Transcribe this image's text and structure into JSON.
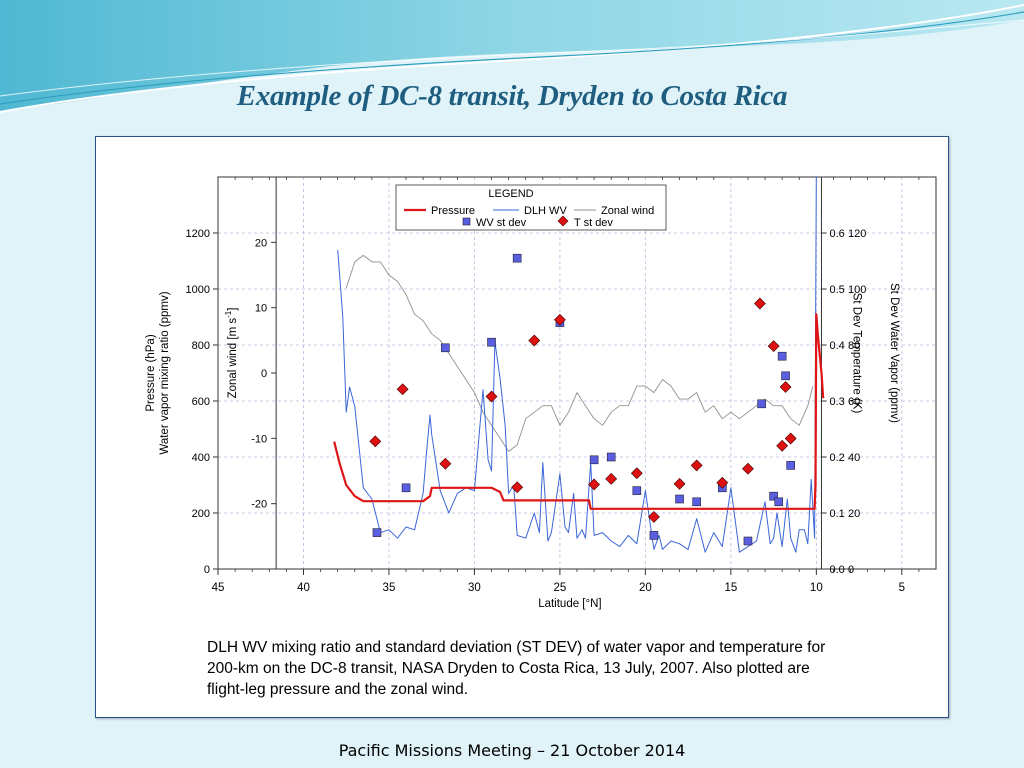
{
  "slide": {
    "title": "Example of DC-8 transit, Dryden to Costa Rica",
    "caption": "DLH WV mixing ratio and standard deviation (ST DEV) of water vapor and temperature for 200-km on the DC-8 transit, NASA Dryden to Costa Rica, 13 July, 2007. Also plotted are flight-leg pressure and the zonal wind.",
    "footer": "Pacific Missions Meeting – 21 October 2014",
    "colors": {
      "title": "#1f5e80",
      "pressure": "#e01515",
      "dlh_wv": "#3a66d8",
      "zonal_wind": "#909090",
      "wv_stdev": "#5a5ee0",
      "t_stdev": "#dd1111"
    }
  },
  "chart_data": {
    "type": "line",
    "xlabel": "Latitude [°N]",
    "xlim": [
      45,
      3
    ],
    "x_ticks": [
      "45",
      "40",
      "35",
      "30",
      "25",
      "20",
      "15",
      "10",
      "5"
    ],
    "grid": true,
    "legend": {
      "title": "LEGEND",
      "placement": "top-center",
      "entries": [
        "Pressure",
        "DLH WV",
        "Zonal wind",
        "WV st dev",
        "T st dev"
      ]
    },
    "axes": {
      "pressure_wv": {
        "label_line1": "Pressure (hPa)",
        "label_line2": "Water vapor mixing ratio (ppmv)",
        "range": [
          0,
          1400
        ],
        "ticks": [
          "0",
          "200",
          "400",
          "600",
          "800",
          "1000",
          "1200"
        ]
      },
      "zonal_wind": {
        "label": "Zonal wind [m s",
        "label_sup": "-1",
        "label_end": "]",
        "range": [
          -30,
          30
        ],
        "ticks": [
          "-20",
          "-10",
          "0",
          "10",
          "20"
        ]
      },
      "t_stdev": {
        "label": "St Dev Temperature (K)",
        "range": [
          0,
          0.7
        ],
        "ticks": [
          "0.0",
          "0.1",
          "0.2",
          "0.3",
          "0.4",
          "0.5",
          "0.6"
        ]
      },
      "wv_stdev": {
        "label": "St Dev Water Vapor (ppmv)",
        "range": [
          0,
          140
        ],
        "ticks": [
          "0",
          "20",
          "40",
          "60",
          "80",
          "100",
          "120"
        ]
      }
    },
    "series": [
      {
        "name": "Pressure",
        "axis": "pressure_wv",
        "x": [
          38.2,
          37.9,
          37.5,
          37.0,
          36.5,
          36.0,
          35.0,
          34.0,
          33.0,
          32.6,
          32.5,
          31.0,
          30.0,
          29.0,
          28.5,
          28.3,
          27.0,
          26.0,
          25.0,
          24.0,
          23.3,
          23.2,
          22.0,
          20.0,
          18.0,
          16.0,
          14.0,
          12.0,
          10.1,
          10.05,
          10.0,
          9.9,
          9.7,
          9.6
        ],
        "y": [
          455,
          380,
          300,
          260,
          242,
          242,
          242,
          242,
          242,
          260,
          290,
          290,
          290,
          290,
          275,
          245,
          245,
          245,
          245,
          245,
          245,
          215,
          215,
          215,
          215,
          215,
          215,
          215,
          215,
          300,
          910,
          830,
          700,
          610
        ]
      },
      {
        "name": "DLH WV",
        "axis": "pressure_wv",
        "x": [
          38.0,
          37.7,
          37.5,
          37.3,
          37.0,
          36.5,
          36.0,
          35.5,
          35.0,
          34.5,
          34.0,
          33.5,
          33.0,
          32.8,
          32.6,
          32.5,
          32.0,
          31.5,
          31.0,
          30.5,
          30.0,
          29.5,
          29.2,
          29.0,
          28.8,
          28.5,
          28.2,
          28.0,
          27.7,
          27.5,
          27.0,
          26.5,
          26.2,
          26.0,
          25.7,
          25.5,
          25.0,
          24.7,
          24.5,
          24.2,
          24.0,
          23.7,
          23.5,
          23.2,
          23.0,
          22.5,
          22.0,
          21.5,
          21.0,
          20.5,
          20.0,
          19.5,
          19.2,
          19.0,
          18.5,
          18.0,
          17.5,
          17.0,
          16.5,
          16.0,
          15.5,
          15.0,
          14.5,
          14.0,
          13.5,
          13.0,
          12.7,
          12.5,
          12.3,
          12.0,
          11.7,
          11.5,
          11.2,
          11.0,
          10.7,
          10.5,
          10.3,
          10.1,
          10.0
        ],
        "y": [
          1140,
          900,
          560,
          650,
          580,
          290,
          250,
          130,
          140,
          110,
          150,
          140,
          270,
          420,
          550,
          480,
          280,
          200,
          270,
          290,
          280,
          640,
          390,
          350,
          810,
          680,
          510,
          270,
          300,
          120,
          110,
          200,
          130,
          380,
          100,
          130,
          340,
          150,
          130,
          270,
          110,
          140,
          110,
          380,
          120,
          130,
          100,
          80,
          120,
          90,
          280,
          70,
          120,
          70,
          100,
          90,
          70,
          180,
          60,
          130,
          80,
          290,
          60,
          80,
          100,
          240,
          90,
          110,
          200,
          80,
          250,
          110,
          60,
          140,
          140,
          90,
          320,
          110,
          1400
        ]
      },
      {
        "name": "Zonal wind",
        "axis": "zonal_wind",
        "x": [
          37.5,
          37.0,
          36.5,
          36.0,
          35.5,
          35.0,
          34.5,
          34.0,
          33.5,
          33.0,
          32.5,
          32.0,
          31.5,
          31.0,
          30.5,
          30.0,
          29.5,
          29.0,
          28.5,
          28.0,
          27.5,
          27.0,
          26.5,
          26.0,
          25.5,
          25.0,
          24.5,
          24.0,
          23.5,
          23.0,
          22.5,
          22.0,
          21.5,
          21.0,
          20.5,
          20.0,
          19.5,
          19.0,
          18.5,
          18.0,
          17.5,
          17.0,
          16.5,
          16.0,
          15.5,
          15.0,
          14.5,
          14.0,
          13.5,
          13.0,
          12.5,
          12.0,
          11.5,
          11.0,
          10.5,
          10.2
        ],
        "y": [
          13,
          17,
          18,
          17,
          17,
          15,
          14,
          12,
          9,
          8,
          6,
          5,
          3,
          1,
          -1,
          -3,
          -6,
          -8,
          -10,
          -12,
          -11,
          -7,
          -6,
          -5,
          -5,
          -8,
          -6,
          -3,
          -5,
          -7,
          -8,
          -6,
          -5,
          -5,
          -2,
          -2,
          -3,
          -1,
          -2,
          -4,
          -4,
          -3,
          -6,
          -5,
          -7,
          -6,
          -7,
          -6,
          -5,
          -4,
          -5,
          -5,
          -7,
          -8,
          -5,
          -2
        ]
      }
    ],
    "scatter_series": [
      {
        "name": "WV st dev",
        "marker": "square",
        "axis": "wv_stdev",
        "x": [
          35.7,
          34.0,
          31.7,
          29.0,
          27.5,
          26.2,
          25.0,
          23.0,
          22.0,
          20.5,
          19.5,
          18.0,
          17.0,
          15.5,
          14.0,
          13.2,
          12.5,
          12.2,
          12.0,
          11.8,
          11.5
        ],
        "y": [
          13,
          29,
          79,
          81,
          111,
          131,
          88,
          39,
          40,
          28,
          12,
          25,
          24,
          29,
          10,
          59,
          26,
          24,
          76,
          69,
          37
        ]
      },
      {
        "name": "T st dev",
        "marker": "diamond",
        "axis": "t_stdev",
        "x": [
          35.8,
          34.2,
          31.7,
          29.0,
          27.5,
          26.5,
          25.0,
          23.0,
          22.0,
          20.5,
          19.5,
          18.0,
          17.0,
          15.5,
          14.0,
          13.3,
          12.5,
          12.0,
          11.8,
          11.5
        ],
        "y": [
          0.228,
          0.321,
          0.188,
          0.308,
          0.146,
          0.408,
          0.445,
          0.151,
          0.161,
          0.171,
          0.093,
          0.152,
          0.185,
          0.154,
          0.179,
          0.474,
          0.398,
          0.22,
          0.325,
          0.233
        ]
      }
    ]
  }
}
